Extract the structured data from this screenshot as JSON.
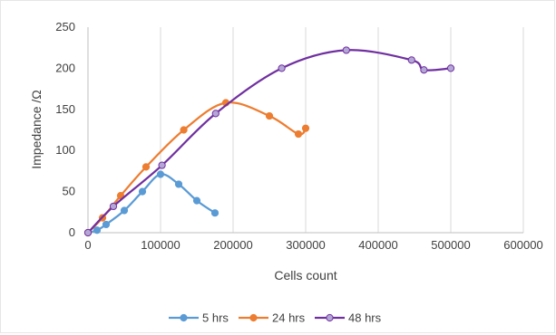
{
  "chart_data": {
    "type": "line",
    "title": "",
    "xlabel": "Cells count",
    "ylabel": "Impedance /Ω",
    "xlim": [
      0,
      600000
    ],
    "ylim": [
      0,
      250
    ],
    "x_ticks": [
      0,
      100000,
      200000,
      300000,
      400000,
      500000,
      600000
    ],
    "y_ticks": [
      0,
      50,
      100,
      150,
      200,
      250
    ],
    "x_tick_labels": [
      "0",
      "100000",
      "200000",
      "300000",
      "400000",
      "500000",
      "600000"
    ],
    "y_tick_labels": [
      "0",
      "50",
      "100",
      "150",
      "200",
      "250"
    ],
    "grid": "vertical gridlines",
    "legend_position": "bottom",
    "series": [
      {
        "name": "5 hrs",
        "color": "#5b9bd5",
        "marker_fill": "#5b9bd5",
        "points": [
          [
            0,
            0
          ],
          [
            12500,
            3
          ],
          [
            25000,
            10
          ],
          [
            50000,
            27
          ],
          [
            75000,
            50
          ],
          [
            100000,
            71
          ],
          [
            125000,
            59
          ],
          [
            150000,
            39
          ],
          [
            175000,
            24
          ]
        ]
      },
      {
        "name": "24 hrs",
        "color": "#ed7d31",
        "marker_fill": "#ed7d31",
        "points": [
          [
            0,
            0
          ],
          [
            20000,
            18
          ],
          [
            45000,
            45
          ],
          [
            80000,
            80
          ],
          [
            132000,
            125
          ],
          [
            190000,
            158
          ],
          [
            250000,
            142
          ],
          [
            290000,
            120
          ],
          [
            300000,
            127
          ]
        ]
      },
      {
        "name": "48 hrs",
        "color": "#7030a0",
        "marker_fill": "#b4a7d6",
        "points": [
          [
            0,
            0
          ],
          [
            35000,
            32
          ],
          [
            102000,
            82
          ],
          [
            176000,
            145
          ],
          [
            267000,
            200
          ],
          [
            356000,
            222
          ],
          [
            446000,
            210
          ],
          [
            463000,
            198
          ],
          [
            500000,
            200
          ]
        ]
      }
    ]
  }
}
